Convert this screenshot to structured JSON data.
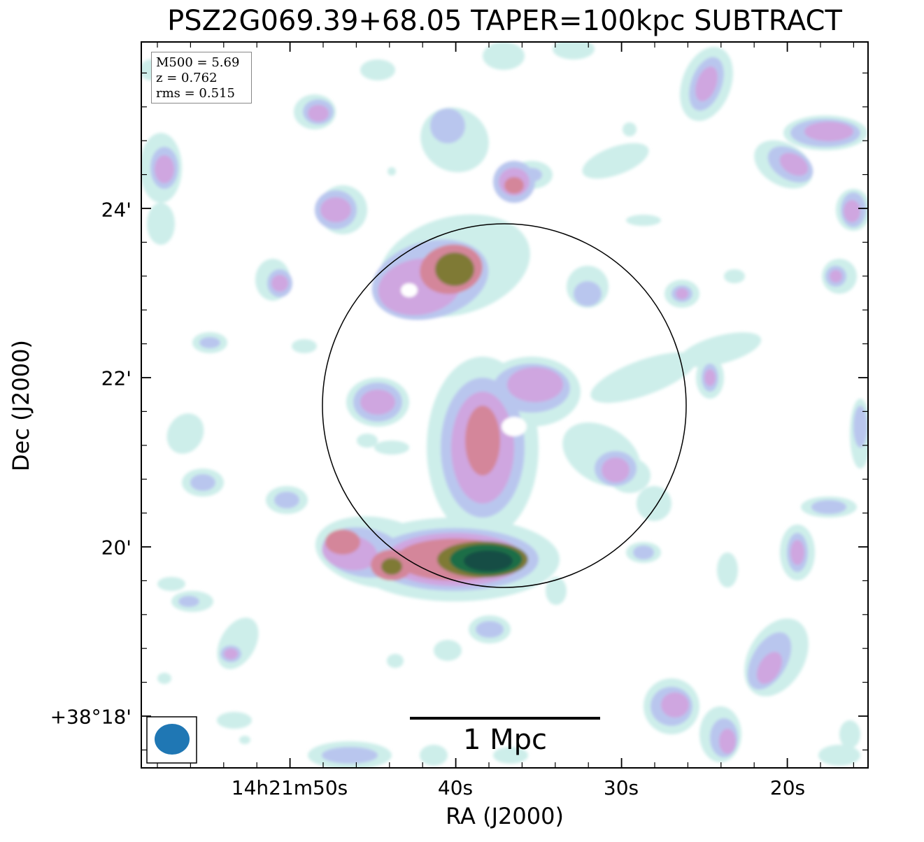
{
  "title": "PSZ2G069.39+68.05 TAPER=100kpc SUBTRACT",
  "axes": {
    "xlabel": "RA (J2000)",
    "ylabel": "Dec (J2000)",
    "xticks": [
      "14h21m50s",
      "40s",
      "30s",
      "20s"
    ],
    "yticks": [
      "24'",
      "22'",
      "20'",
      "+38°18'"
    ]
  },
  "info": {
    "m500": "M500 = 5.69",
    "z": "z = 0.762",
    "rms": "rms = 0.515"
  },
  "scalebar": {
    "label": "1 Mpc"
  },
  "colors": {
    "level1": "#cdeeea",
    "level2": "#b9c6ee",
    "level3": "#cfa6e0",
    "level4": "#d4869a",
    "level5": "#7f7a36",
    "level6": "#1e6e46",
    "level7": "#154e45",
    "beam": "#1f77b4",
    "circle": "#000000"
  },
  "icons": [
    "beam-ellipse-icon",
    "r500-circle-icon"
  ]
}
